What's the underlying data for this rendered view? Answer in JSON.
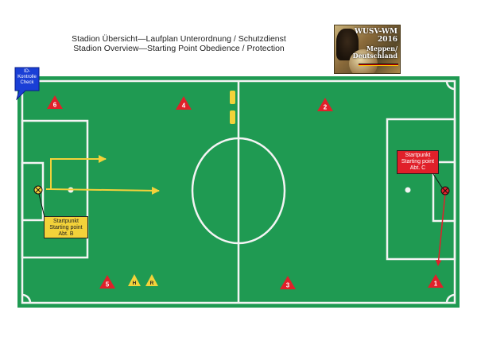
{
  "title": {
    "line1": "Stadion Übersicht—Laufplan Unterordnung / Schutzdienst",
    "line2": "Stadion Overview—Starting Point Obedience / Protection"
  },
  "logo": {
    "line1": "WUSV-WM",
    "line2": "2016",
    "line3": "Meppen/",
    "line4": "Deutschland"
  },
  "callout": {
    "line1": "ID-",
    "line2": "Kontrolle",
    "line3": "Check"
  },
  "start_b": {
    "line1": "Startpunkt",
    "line2": "Starting point",
    "line3": "Abt. B"
  },
  "start_c": {
    "line1": "Startpunkt",
    "line2": "Starting point",
    "line3": "Abt. C"
  },
  "markers": {
    "m1": "1",
    "m2": "2",
    "m3": "3",
    "m4": "4",
    "m5": "5",
    "m6": "6",
    "hide_h": "H",
    "hide_r": "R"
  },
  "colors": {
    "pitch": "#1f9a52",
    "pitch_line": "#f4f4f4",
    "marker_red": "#e0202a",
    "marker_yellow": "#f3d23a",
    "route_yellow": "#f3d23a",
    "route_red": "#e0202a",
    "callout_blue": "#1a3fd6"
  }
}
